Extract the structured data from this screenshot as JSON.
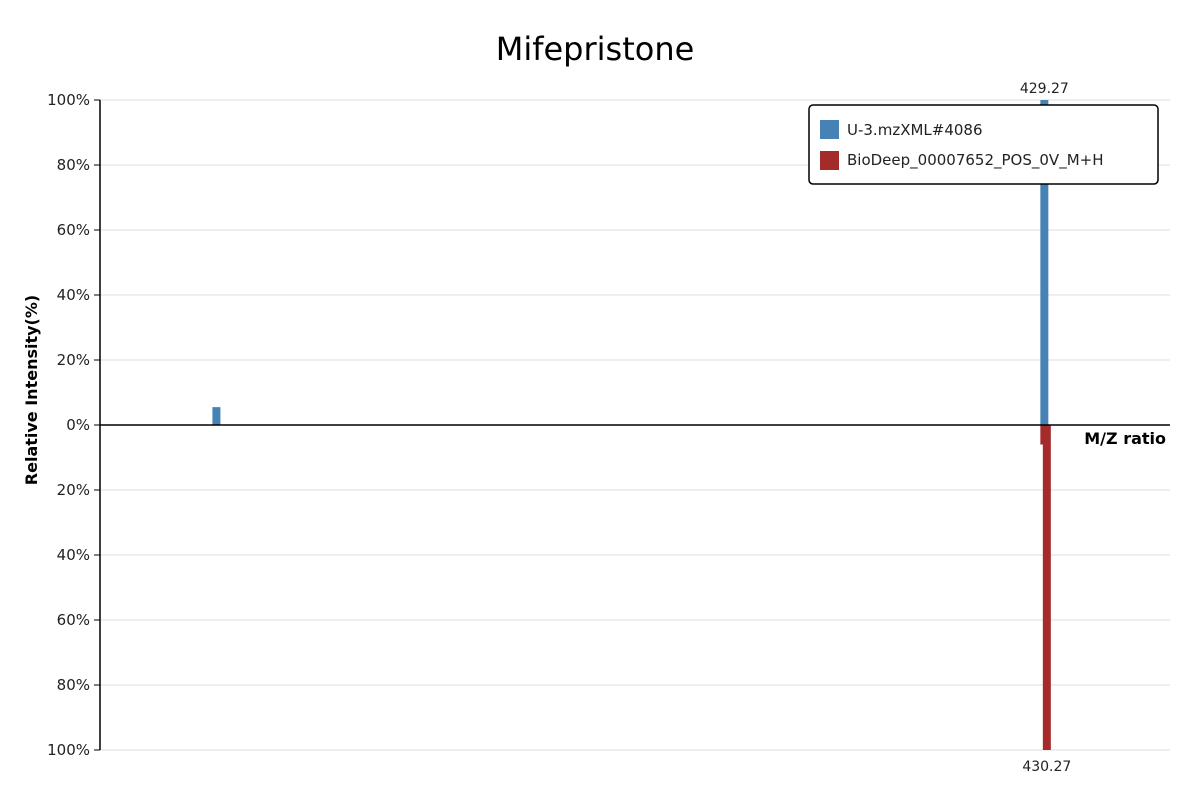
{
  "chart_data": {
    "type": "bar",
    "title": "Mifepristone",
    "xlabel": "M/Z ratio",
    "ylabel": "Relative Intensity(%)",
    "xlim": [
      48,
      480
    ],
    "ylim_top": [
      0,
      100
    ],
    "ylim_bottom": [
      0,
      100
    ],
    "yticks_top": [
      "100%",
      "80%",
      "60%",
      "40%",
      "20%",
      "0%"
    ],
    "yticks_bottom": [
      "20%",
      "40%",
      "60%",
      "80%",
      "100%"
    ],
    "grid": true,
    "legend_position": "top-right",
    "series": [
      {
        "name": "U-3.mzXML#4086",
        "color": "#4682b4",
        "direction": "up",
        "points": [
          {
            "mz": 95.0,
            "intensity": 5.5
          },
          {
            "mz": 429.27,
            "intensity": 100,
            "label": "429.27"
          }
        ]
      },
      {
        "name": "BioDeep_00007652_POS_0V_M+H",
        "color": "#a52a2a",
        "direction": "down",
        "points": [
          {
            "mz": 429.27,
            "intensity": 6
          },
          {
            "mz": 430.27,
            "intensity": 100,
            "label": "430.27"
          }
        ]
      }
    ]
  }
}
